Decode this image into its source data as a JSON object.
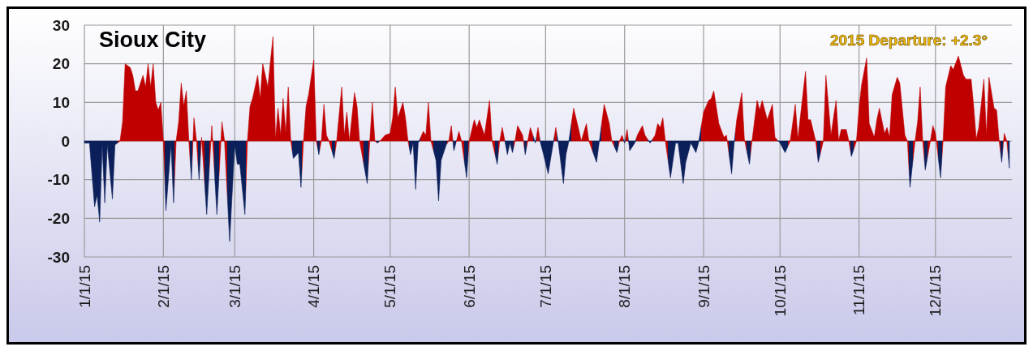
{
  "chart_data": {
    "type": "area",
    "title": "Sioux City",
    "annotations": [
      "2015 Departure: +2.3°"
    ],
    "xlim": [
      "2015-01-01",
      "2015-12-31"
    ],
    "xticks": [
      {
        "value": "2015-01-01",
        "label": "1/1/15"
      },
      {
        "value": "2015-02-01",
        "label": "2/1/15"
      },
      {
        "value": "2015-03-01",
        "label": "3/1/15"
      },
      {
        "value": "2015-04-01",
        "label": "4/1/15"
      },
      {
        "value": "2015-05-01",
        "label": "5/1/15"
      },
      {
        "value": "2015-06-01",
        "label": "6/1/15"
      },
      {
        "value": "2015-07-01",
        "label": "7/1/15"
      },
      {
        "value": "2015-08-01",
        "label": "8/1/15"
      },
      {
        "value": "2015-09-01",
        "label": "9/1/15"
      },
      {
        "value": "2015-10-01",
        "label": "10/1/15"
      },
      {
        "value": "2015-11-01",
        "label": "11/1/15"
      },
      {
        "value": "2015-12-01",
        "label": "12/1/15"
      }
    ],
    "ylim": [
      -30,
      30
    ],
    "yticks": [
      -30,
      -20,
      -10,
      0,
      10,
      20,
      30
    ],
    "grid": true,
    "series": [
      {
        "x": [
          "2015-01-01",
          "2015-01-03",
          "2015-01-05",
          "2015-01-06",
          "2015-01-07",
          "2015-01-08",
          "2015-01-09",
          "2015-01-10",
          "2015-01-12",
          "2015-01-13",
          "2015-01-15",
          "2015-01-16",
          "2015-01-17",
          "2015-01-19",
          "2015-01-20",
          "2015-01-21",
          "2015-01-22",
          "2015-01-24",
          "2015-01-25",
          "2015-01-26",
          "2015-01-27",
          "2015-01-28",
          "2015-01-29",
          "2015-01-30",
          "2015-01-31",
          "2015-02-01",
          "2015-02-02",
          "2015-02-04",
          "2015-02-05",
          "2015-02-06",
          "2015-02-07",
          "2015-02-08",
          "2015-02-09",
          "2015-02-10",
          "2015-02-11",
          "2015-02-12",
          "2015-02-13",
          "2015-02-14",
          "2015-02-15",
          "2015-02-16",
          "2015-02-18",
          "2015-02-20",
          "2015-02-22",
          "2015-02-24",
          "2015-02-25",
          "2015-02-27",
          "2015-03-01",
          "2015-03-02",
          "2015-03-03",
          "2015-03-05",
          "2015-03-06",
          "2015-03-07",
          "2015-03-08",
          "2015-03-10",
          "2015-03-11",
          "2015-03-12",
          "2015-03-14",
          "2015-03-16",
          "2015-03-17",
          "2015-03-18",
          "2015-03-19",
          "2015-03-20",
          "2015-03-21",
          "2015-03-22",
          "2015-03-23",
          "2015-03-24",
          "2015-03-26",
          "2015-03-27",
          "2015-03-28",
          "2015-03-29",
          "2015-03-30",
          "2015-04-01",
          "2015-04-02",
          "2015-04-03",
          "2015-04-04",
          "2015-04-05",
          "2015-04-06",
          "2015-04-07",
          "2015-04-09",
          "2015-04-10",
          "2015-04-12",
          "2015-04-13",
          "2015-04-14",
          "2015-04-15",
          "2015-04-17",
          "2015-04-18",
          "2015-04-19",
          "2015-04-22",
          "2015-04-23",
          "2015-04-24",
          "2015-04-25",
          "2015-04-26",
          "2015-04-27",
          "2015-04-29",
          "2015-05-01",
          "2015-05-02",
          "2015-05-03",
          "2015-05-04",
          "2015-05-06",
          "2015-05-07",
          "2015-05-08",
          "2015-05-09",
          "2015-05-10",
          "2015-05-11",
          "2015-05-12",
          "2015-05-14",
          "2015-05-15",
          "2015-05-16",
          "2015-05-17",
          "2015-05-19",
          "2015-05-20",
          "2015-05-21",
          "2015-05-23",
          "2015-05-24",
          "2015-05-25",
          "2015-05-26",
          "2015-05-28",
          "2015-05-29",
          "2015-05-31",
          "2015-06-01",
          "2015-06-03",
          "2015-06-04",
          "2015-06-05",
          "2015-06-07",
          "2015-06-09",
          "2015-06-10",
          "2015-06-12",
          "2015-06-13",
          "2015-06-14",
          "2015-06-16",
          "2015-06-17",
          "2015-06-18",
          "2015-06-19",
          "2015-06-20",
          "2015-06-22",
          "2015-06-23",
          "2015-06-24",
          "2015-06-25",
          "2015-06-27",
          "2015-06-28",
          "2015-06-29",
          "2015-06-30",
          "2015-07-02",
          "2015-07-04",
          "2015-07-05",
          "2015-07-06",
          "2015-07-08",
          "2015-07-09",
          "2015-07-10",
          "2015-07-12",
          "2015-07-14",
          "2015-07-15",
          "2015-07-17",
          "2015-07-18",
          "2015-07-21",
          "2015-07-22",
          "2015-07-24",
          "2015-07-26",
          "2015-07-27",
          "2015-07-29",
          "2015-07-30",
          "2015-07-31",
          "2015-08-01",
          "2015-08-02",
          "2015-08-03",
          "2015-08-05",
          "2015-08-06",
          "2015-08-08",
          "2015-08-09",
          "2015-08-11",
          "2015-08-13",
          "2015-08-14",
          "2015-08-15",
          "2015-08-16",
          "2015-08-17",
          "2015-08-19",
          "2015-08-21",
          "2015-08-22",
          "2015-08-24",
          "2015-08-25",
          "2015-08-27",
          "2015-08-29",
          "2015-08-30",
          "2015-09-01",
          "2015-09-03",
          "2015-09-04",
          "2015-09-05",
          "2015-09-07",
          "2015-09-09",
          "2015-09-10",
          "2015-09-12",
          "2015-09-13",
          "2015-09-14",
          "2015-09-16",
          "2015-09-17",
          "2015-09-19",
          "2015-09-20",
          "2015-09-22",
          "2015-09-23",
          "2015-09-24",
          "2015-09-26",
          "2015-09-28",
          "2015-09-29",
          "2015-10-01",
          "2015-10-03",
          "2015-10-05",
          "2015-10-07",
          "2015-10-08",
          "2015-10-11",
          "2015-10-12",
          "2015-10-13",
          "2015-10-15",
          "2015-10-16",
          "2015-10-18",
          "2015-10-19",
          "2015-10-21",
          "2015-10-23",
          "2015-10-24",
          "2015-10-25",
          "2015-10-27",
          "2015-10-28",
          "2015-10-29",
          "2015-10-31",
          "2015-11-01",
          "2015-11-02",
          "2015-11-04",
          "2015-11-05",
          "2015-11-07",
          "2015-11-08",
          "2015-11-09",
          "2015-11-11",
          "2015-11-12",
          "2015-11-13",
          "2015-11-14",
          "2015-11-16",
          "2015-11-17",
          "2015-11-19",
          "2015-11-20",
          "2015-11-21",
          "2015-11-23",
          "2015-11-24",
          "2015-11-25",
          "2015-11-26",
          "2015-11-27",
          "2015-11-29",
          "2015-11-30",
          "2015-12-01",
          "2015-12-03",
          "2015-12-04",
          "2015-12-05",
          "2015-12-07",
          "2015-12-08",
          "2015-12-10",
          "2015-12-12",
          "2015-12-13",
          "2015-12-15",
          "2015-12-16",
          "2015-12-17",
          "2015-12-18",
          "2015-12-20",
          "2015-12-21",
          "2015-12-22",
          "2015-12-24",
          "2015-12-25",
          "2015-12-26",
          "2015-12-27",
          "2015-12-28",
          "2015-12-29",
          "2015-12-30"
        ],
        "values": [
          -0.5,
          -0.5,
          -17,
          -14,
          -21,
          -1,
          -16,
          -1,
          -15,
          -1,
          0,
          5,
          20,
          19,
          17,
          13,
          13,
          17,
          14,
          20,
          14,
          20,
          10,
          8,
          10,
          0,
          -18,
          -1,
          -16,
          0,
          5,
          15,
          9,
          13,
          0,
          -10,
          6,
          0,
          -10,
          1,
          -19,
          4,
          -19,
          5,
          0,
          -26,
          -1,
          -6,
          -6,
          -19,
          0,
          9,
          11,
          17,
          11,
          20,
          14,
          27,
          0.5,
          8.5,
          1.5,
          11,
          2,
          14,
          0,
          -4.5,
          -3,
          -12,
          0,
          9,
          12,
          21,
          0,
          -3.5,
          0,
          9.5,
          1.5,
          0,
          -4.5,
          0,
          14,
          1.5,
          7.5,
          0,
          12.5,
          9,
          0,
          -11,
          0,
          10,
          0,
          -0.5,
          0,
          1.5,
          2,
          6,
          14,
          6,
          10,
          6,
          0,
          -3.5,
          -0.5,
          -12.5,
          -0.5,
          2.5,
          1.5,
          10,
          0,
          -5,
          -15.5,
          -5,
          -1,
          0,
          4,
          -2.5,
          2.5,
          0,
          -9.5,
          0,
          5.5,
          3.5,
          5.5,
          1.5,
          10.5,
          0,
          -6,
          0,
          3.5,
          -3.5,
          -0.5,
          -3,
          0,
          4,
          1.5,
          -3.5,
          0,
          3.5,
          -0.5,
          3.5,
          -0.5,
          -3,
          -8.5,
          -0.5,
          3.5,
          -0.5,
          -11,
          -3.5,
          -0.5,
          8.5,
          3,
          0,
          4.5,
          0,
          -5.5,
          -0.5,
          9.5,
          4.5,
          0,
          -3,
          0,
          1.5,
          -0.5,
          3,
          -2.5,
          -0.5,
          1.5,
          4,
          1.5,
          -0.5,
          1.5,
          4.5,
          3.5,
          6,
          0,
          -9.5,
          -0.5,
          -0.5,
          -11,
          -5.5,
          -0.5,
          -3,
          -0.5,
          7.5,
          10.5,
          11,
          13,
          4.5,
          1,
          1.5,
          -8.5,
          -0.5,
          5.5,
          12.5,
          0.5,
          -6,
          0,
          10.5,
          8,
          10.5,
          5.5,
          9.5,
          1,
          -0.5,
          -3,
          0,
          9.5,
          0.5,
          18,
          5.5,
          5.5,
          0,
          -5.5,
          0,
          17,
          1.5,
          10.5,
          0,
          3,
          3,
          0,
          -4,
          0,
          8.5,
          14.5,
          21.5,
          4.5,
          1,
          5.5,
          8.5,
          2,
          3.5,
          1,
          12,
          16.5,
          15,
          1.5,
          0,
          -12,
          0,
          5,
          14,
          0,
          -7.5,
          0,
          4,
          2,
          -9.5,
          0,
          14,
          19.5,
          18.5,
          22,
          17,
          16,
          16,
          9,
          0.5,
          3.5,
          16,
          1.5,
          16.5,
          8.5,
          8,
          0,
          -5.5,
          2,
          0,
          -7
        ],
        "colors": [
          "#0b1f5a",
          "#0b1f5a",
          "#0b1f5a",
          "#0b1f5a",
          "#0b1f5a",
          "#0b1f5a",
          "#0b1f5a",
          "#0b1f5a",
          "#0b1f5a",
          "#0b1f5a",
          "#c00000",
          "#c00000",
          "#c00000",
          "#c00000",
          "#c00000",
          "#c00000",
          "#c00000",
          "#c00000",
          "#c00000",
          "#c00000",
          "#c00000",
          "#c00000",
          "#c00000",
          "#c00000",
          "#c00000",
          "#c00000",
          "#0b1f5a",
          "#0b1f5a",
          "#0b1f5a",
          "#c00000",
          "#c00000",
          "#c00000",
          "#c00000",
          "#c00000",
          "#c00000",
          "#0b1f5a",
          "#c00000",
          "#c00000",
          "#0b1f5a",
          "#c00000",
          "#0b1f5a",
          "#c00000",
          "#0b1f5a",
          "#c00000",
          "#c00000",
          "#0b1f5a",
          "#0b1f5a",
          "#0b1f5a",
          "#0b1f5a",
          "#0b1f5a",
          "#c00000",
          "#c00000",
          "#c00000",
          "#c00000",
          "#c00000",
          "#c00000",
          "#c00000",
          "#c00000",
          "#c00000",
          "#c00000",
          "#c00000",
          "#c00000",
          "#c00000",
          "#c00000",
          "#c00000",
          "#0b1f5a",
          "#0b1f5a",
          "#0b1f5a",
          "#c00000",
          "#c00000",
          "#c00000",
          "#c00000",
          "#c00000",
          "#0b1f5a",
          "#c00000",
          "#c00000",
          "#c00000",
          "#c00000",
          "#0b1f5a",
          "#c00000",
          "#c00000",
          "#c00000",
          "#c00000",
          "#c00000",
          "#c00000",
          "#c00000",
          "#c00000",
          "#0b1f5a",
          "#c00000",
          "#c00000",
          "#c00000",
          "#0b1f5a",
          "#c00000",
          "#c00000",
          "#c00000",
          "#c00000",
          "#c00000",
          "#c00000",
          "#c00000",
          "#c00000",
          "#c00000",
          "#0b1f5a",
          "#0b1f5a",
          "#0b1f5a",
          "#0b1f5a",
          "#c00000",
          "#c00000",
          "#c00000",
          "#c00000",
          "#0b1f5a",
          "#0b1f5a",
          "#0b1f5a",
          "#0b1f5a",
          "#c00000",
          "#c00000",
          "#0b1f5a",
          "#c00000",
          "#c00000",
          "#0b1f5a",
          "#c00000",
          "#c00000",
          "#c00000",
          "#c00000",
          "#c00000",
          "#c00000",
          "#c00000",
          "#0b1f5a",
          "#c00000",
          "#c00000",
          "#0b1f5a",
          "#0b1f5a",
          "#0b1f5a",
          "#c00000",
          "#c00000",
          "#c00000",
          "#0b1f5a",
          "#c00000",
          "#c00000",
          "#0b1f5a",
          "#c00000",
          "#0b1f5a",
          "#0b1f5a",
          "#0b1f5a",
          "#0b1f5a",
          "#c00000",
          "#0b1f5a",
          "#0b1f5a",
          "#0b1f5a",
          "#0b1f5a",
          "#c00000",
          "#c00000",
          "#c00000",
          "#c00000",
          "#c00000",
          "#0b1f5a",
          "#0b1f5a",
          "#c00000",
          "#c00000",
          "#c00000",
          "#0b1f5a",
          "#c00000",
          "#c00000",
          "#0b1f5a",
          "#c00000",
          "#0b1f5a",
          "#0b1f5a",
          "#c00000",
          "#c00000",
          "#c00000",
          "#0b1f5a",
          "#c00000",
          "#c00000",
          "#c00000",
          "#c00000",
          "#c00000",
          "#0b1f5a",
          "#0b1f5a",
          "#0b1f5a",
          "#0b1f5a",
          "#0b1f5a",
          "#0b1f5a",
          "#0b1f5a",
          "#0b1f5a",
          "#c00000",
          "#c00000",
          "#c00000",
          "#c00000",
          "#c00000",
          "#c00000",
          "#c00000",
          "#0b1f5a",
          "#0b1f5a",
          "#c00000",
          "#c00000",
          "#c00000",
          "#0b1f5a",
          "#c00000",
          "#c00000",
          "#c00000",
          "#c00000",
          "#c00000",
          "#c00000",
          "#c00000",
          "#0b1f5a",
          "#0b1f5a",
          "#c00000",
          "#c00000",
          "#c00000",
          "#c00000",
          "#c00000",
          "#c00000",
          "#c00000",
          "#0b1f5a",
          "#c00000",
          "#c00000",
          "#c00000",
          "#c00000",
          "#c00000",
          "#c00000",
          "#c00000",
          "#c00000",
          "#0b1f5a",
          "#c00000",
          "#c00000",
          "#c00000",
          "#c00000",
          "#c00000",
          "#c00000",
          "#c00000",
          "#c00000",
          "#c00000",
          "#c00000",
          "#c00000",
          "#c00000",
          "#c00000",
          "#c00000",
          "#c00000",
          "#c00000",
          "#0b1f5a",
          "#c00000",
          "#c00000",
          "#c00000",
          "#c00000",
          "#0b1f5a",
          "#c00000",
          "#c00000",
          "#c00000",
          "#0b1f5a",
          "#c00000",
          "#c00000",
          "#c00000",
          "#c00000",
          "#c00000",
          "#c00000",
          "#c00000",
          "#c00000",
          "#c00000",
          "#c00000",
          "#c00000",
          "#c00000",
          "#c00000",
          "#c00000",
          "#c00000",
          "#c00000",
          "#c00000",
          "#0b1f5a",
          "#c00000",
          "#c00000",
          "#0b1f5a"
        ]
      }
    ]
  }
}
